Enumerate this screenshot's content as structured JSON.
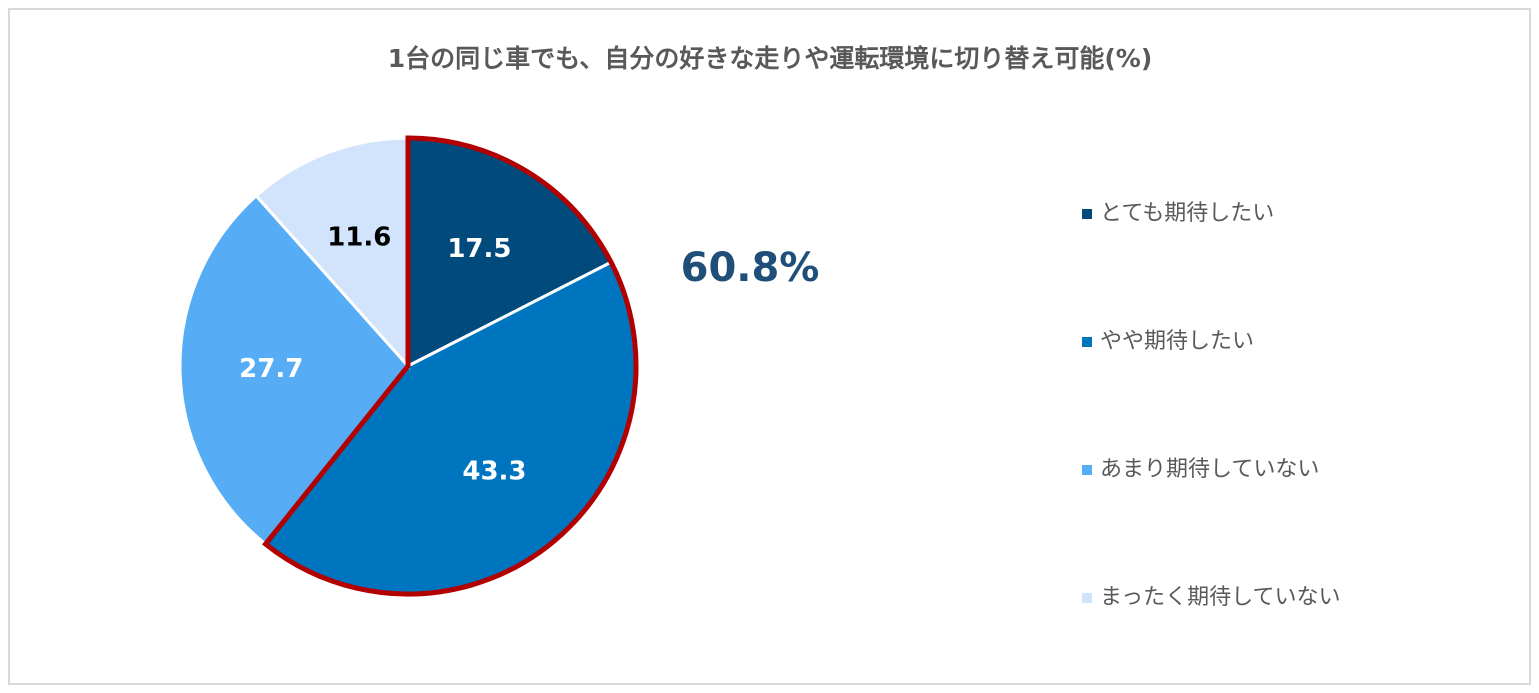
{
  "chart_data": {
    "type": "pie",
    "title": "1台の同じ車でも、自分の好きな走りや運転環境に切り替え可能(%)",
    "categories": [
      "とても期待したい",
      "やや期待したい",
      "あまり期待していない",
      "まったく期待していない"
    ],
    "values": [
      17.5,
      43.3,
      27.7,
      11.6
    ],
    "colors": [
      "#004b7c",
      "#0075bf",
      "#56adf6",
      "#d1e4fb"
    ],
    "annotation": "60.8%",
    "highlight": {
      "color": "#b20000",
      "slices": [
        0,
        1
      ]
    },
    "legend": "right"
  }
}
